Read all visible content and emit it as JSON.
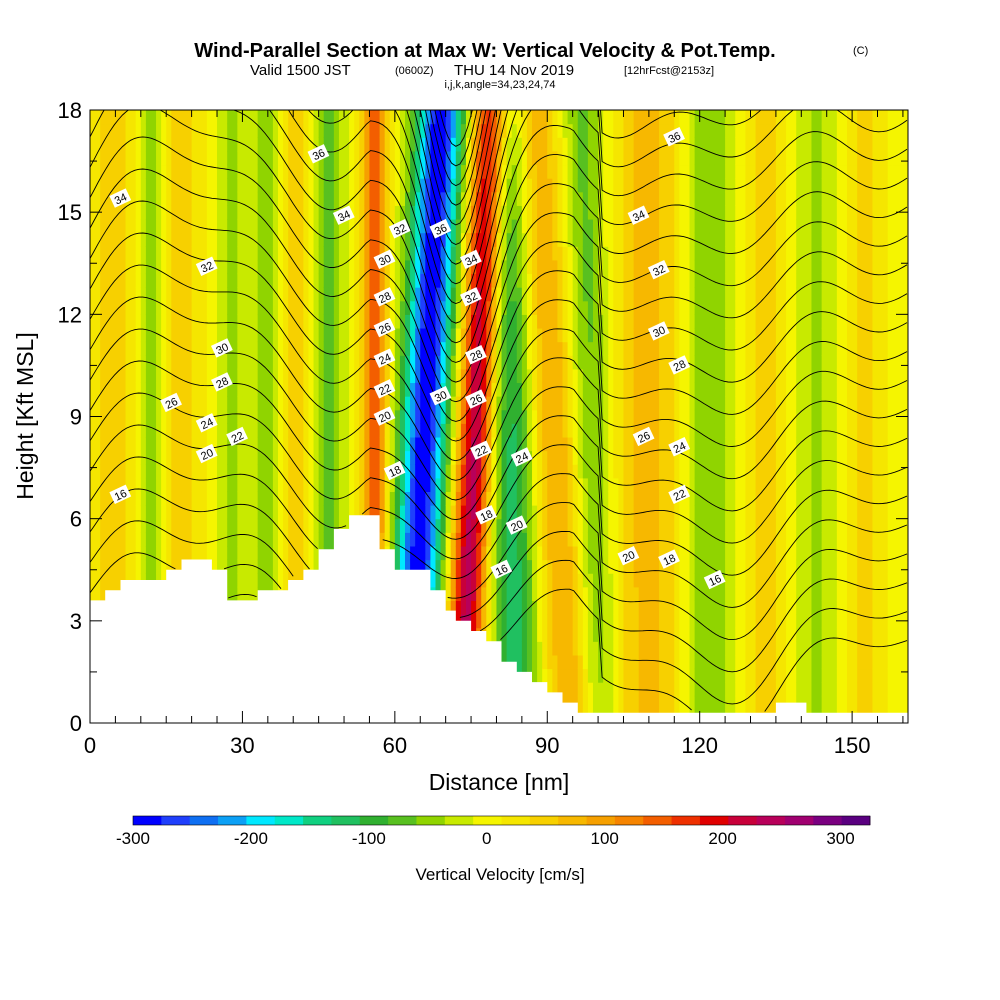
{
  "chart_data": {
    "type": "heatmap",
    "title": "Wind-Parallel Section at Max W: Vertical Velocity & Pot.Temp.",
    "title_tag": "(C)",
    "subtitle_valid": "Valid 1500 JST",
    "subtitle_utc": "(0600Z)",
    "subtitle_date": "THU 14 Nov 2019",
    "subtitle_fcst": "[12hrFcst@2153z]",
    "subtitle_grid": "i,j,k,angle=34,23,24,74",
    "xlabel": "Distance [nm]",
    "ylabel": "Height [Kft MSL]",
    "xlim": [
      0,
      161
    ],
    "ylim": [
      0,
      18
    ],
    "x_ticks": [
      0,
      30,
      60,
      90,
      120,
      150
    ],
    "y_ticks": [
      0,
      3,
      6,
      9,
      12,
      15,
      18
    ],
    "colorbar": {
      "label": "Vertical Velocity [cm/s]",
      "min": -300,
      "max": 325,
      "tick_values": [
        -300,
        -200,
        -100,
        0,
        100,
        200,
        300
      ],
      "colors": [
        "#0000ff",
        "#1f3ffc",
        "#0f6ff2",
        "#0ca0f5",
        "#00e8ff",
        "#00e8c8",
        "#10d080",
        "#20c060",
        "#30b030",
        "#58c020",
        "#90d400",
        "#c8ea00",
        "#f5f500",
        "#f5e600",
        "#f7d000",
        "#f7b800",
        "#f6a000",
        "#f68400",
        "#f35e00",
        "#ee3000",
        "#e00000",
        "#c8003a",
        "#b8005a",
        "#a00070",
        "#7a0080",
        "#5a0080"
      ]
    },
    "w_features": [
      {
        "x_base": 63,
        "x_top": 69,
        "width": 4.5,
        "amp": -300
      },
      {
        "x_base": 73,
        "x_top": 79,
        "width": 3.5,
        "amp": 240
      },
      {
        "x_base": 56,
        "x_top": 56,
        "width": 2.5,
        "amp": 150
      },
      {
        "x_base": 84,
        "x_top": 82,
        "width": 4.5,
        "amp": -120
      },
      {
        "x_base": 95,
        "x_top": 87,
        "width": 5,
        "amp": 90
      },
      {
        "x_base": 100,
        "x_top": 97,
        "width": 4,
        "amp": -70
      },
      {
        "x_base": 110,
        "x_top": 110,
        "width": 7,
        "amp": 70
      },
      {
        "x_base": 122,
        "x_top": 122,
        "width": 5,
        "amp": -60
      },
      {
        "x_base": 47,
        "x_top": 47,
        "width": 3,
        "amp": -70
      },
      {
        "x_base": 40,
        "x_top": 40,
        "width": 3,
        "amp": 55
      },
      {
        "x_base": 35,
        "x_top": 35,
        "width": 3,
        "amp": -50
      },
      {
        "x_base": 28,
        "x_top": 28,
        "width": 3,
        "amp": -40
      },
      {
        "x_base": 18,
        "x_top": 18,
        "width": 4,
        "amp": 50
      },
      {
        "x_base": 12,
        "x_top": 12,
        "width": 3,
        "amp": -50
      },
      {
        "x_base": 5,
        "x_top": 5,
        "width": 4,
        "amp": 55
      },
      {
        "x_base": 133,
        "x_top": 133,
        "width": 5,
        "amp": 50
      },
      {
        "x_base": 143,
        "x_top": 143,
        "width": 5,
        "amp": -40
      },
      {
        "x_base": 152,
        "x_top": 152,
        "width": 4,
        "amp": 45
      }
    ],
    "terrain": [
      [
        0,
        3.6
      ],
      [
        3,
        3.6
      ],
      [
        3,
        3.9
      ],
      [
        6,
        3.9
      ],
      [
        6,
        4.2
      ],
      [
        15,
        4.2
      ],
      [
        15,
        4.5
      ],
      [
        18,
        4.5
      ],
      [
        18,
        4.8
      ],
      [
        24,
        4.8
      ],
      [
        24,
        4.5
      ],
      [
        27,
        4.5
      ],
      [
        27,
        3.6
      ],
      [
        33,
        3.6
      ],
      [
        33,
        3.9
      ],
      [
        39,
        3.9
      ],
      [
        39,
        4.2
      ],
      [
        42,
        4.2
      ],
      [
        42,
        4.5
      ],
      [
        45,
        4.5
      ],
      [
        45,
        5.1
      ],
      [
        48,
        5.1
      ],
      [
        48,
        5.7
      ],
      [
        51,
        5.7
      ],
      [
        51,
        6.1
      ],
      [
        57,
        6.1
      ],
      [
        57,
        5.1
      ],
      [
        60,
        5.1
      ],
      [
        60,
        4.5
      ],
      [
        67,
        4.5
      ],
      [
        67,
        3.9
      ],
      [
        70,
        3.9
      ],
      [
        70,
        3.3
      ],
      [
        72,
        3.3
      ],
      [
        72,
        3.0
      ],
      [
        75,
        3.0
      ],
      [
        75,
        2.7
      ],
      [
        78,
        2.7
      ],
      [
        78,
        2.4
      ],
      [
        81,
        2.4
      ],
      [
        81,
        1.8
      ],
      [
        84,
        1.8
      ],
      [
        84,
        1.5
      ],
      [
        87,
        1.5
      ],
      [
        87,
        1.2
      ],
      [
        90,
        1.2
      ],
      [
        90,
        0.9
      ],
      [
        93,
        0.9
      ],
      [
        93,
        0.6
      ],
      [
        96,
        0.6
      ],
      [
        96,
        0.3
      ],
      [
        135,
        0.3
      ],
      [
        135,
        0.6
      ],
      [
        141,
        0.6
      ],
      [
        141,
        0.3
      ],
      [
        161,
        0.3
      ]
    ],
    "theta_levels": [
      16,
      18,
      20,
      22,
      24,
      26,
      28,
      30,
      32,
      34,
      36
    ],
    "contour_labels": [
      {
        "text": "34",
        "x": 6,
        "y": 15.4
      },
      {
        "text": "36",
        "x": 45,
        "y": 16.7
      },
      {
        "text": "34",
        "x": 50,
        "y": 14.9
      },
      {
        "text": "32",
        "x": 23,
        "y": 13.4
      },
      {
        "text": "30",
        "x": 26,
        "y": 11.0
      },
      {
        "text": "28",
        "x": 26,
        "y": 10.0
      },
      {
        "text": "26",
        "x": 16,
        "y": 9.4
      },
      {
        "text": "24",
        "x": 23,
        "y": 8.8
      },
      {
        "text": "22",
        "x": 29,
        "y": 8.4
      },
      {
        "text": "20",
        "x": 23,
        "y": 7.9
      },
      {
        "text": "16",
        "x": 6,
        "y": 6.7
      },
      {
        "text": "32",
        "x": 61,
        "y": 14.5
      },
      {
        "text": "36",
        "x": 69,
        "y": 14.5
      },
      {
        "text": "30",
        "x": 58,
        "y": 13.6
      },
      {
        "text": "28",
        "x": 58,
        "y": 12.5
      },
      {
        "text": "26",
        "x": 58,
        "y": 11.6
      },
      {
        "text": "24",
        "x": 58,
        "y": 10.7
      },
      {
        "text": "22",
        "x": 58,
        "y": 9.8
      },
      {
        "text": "20",
        "x": 58,
        "y": 9.0
      },
      {
        "text": "18",
        "x": 60,
        "y": 7.4
      },
      {
        "text": "30",
        "x": 69,
        "y": 9.6
      },
      {
        "text": "34",
        "x": 75,
        "y": 13.6
      },
      {
        "text": "32",
        "x": 75,
        "y": 12.5
      },
      {
        "text": "28",
        "x": 76,
        "y": 10.8
      },
      {
        "text": "26",
        "x": 76,
        "y": 9.5
      },
      {
        "text": "22",
        "x": 77,
        "y": 8.0
      },
      {
        "text": "24",
        "x": 85,
        "y": 7.8
      },
      {
        "text": "18",
        "x": 78,
        "y": 6.1
      },
      {
        "text": "20",
        "x": 84,
        "y": 5.8
      },
      {
        "text": "16",
        "x": 81,
        "y": 4.5
      },
      {
        "text": "36",
        "x": 115,
        "y": 17.2
      },
      {
        "text": "34",
        "x": 108,
        "y": 14.9
      },
      {
        "text": "32",
        "x": 112,
        "y": 13.3
      },
      {
        "text": "30",
        "x": 112,
        "y": 11.5
      },
      {
        "text": "28",
        "x": 116,
        "y": 10.5
      },
      {
        "text": "26",
        "x": 109,
        "y": 8.4
      },
      {
        "text": "24",
        "x": 116,
        "y": 8.1
      },
      {
        "text": "22",
        "x": 116,
        "y": 6.7
      },
      {
        "text": "20",
        "x": 106,
        "y": 4.9
      },
      {
        "text": "18",
        "x": 114,
        "y": 4.8
      },
      {
        "text": "16",
        "x": 123,
        "y": 4.2
      }
    ]
  }
}
